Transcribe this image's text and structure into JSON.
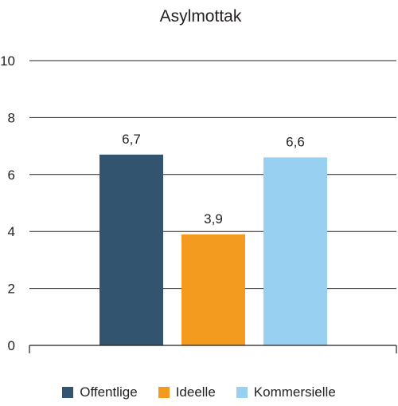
{
  "chart_data": {
    "type": "bar",
    "title": "Asylmottak",
    "categories": [
      "Offentlige",
      "Ideelle",
      "Kommersielle"
    ],
    "values": [
      6.7,
      3.9,
      6.6
    ],
    "data_labels": [
      "6,7",
      "3,9",
      "6,6"
    ],
    "colors": [
      "#33546e",
      "#f39b1e",
      "#97d0f0"
    ],
    "ylim": [
      0,
      10
    ],
    "yticks": [
      0,
      2,
      4,
      6,
      8,
      10
    ],
    "ytick_labels": [
      "0",
      "2",
      "4",
      "6",
      "8",
      "10"
    ],
    "grid": true,
    "legend": "bottom"
  },
  "legend": {
    "items": [
      {
        "label": "Offentlige",
        "color": "#33546e"
      },
      {
        "label": "Ideelle",
        "color": "#f39b1e"
      },
      {
        "label": "Kommersielle",
        "color": "#97d0f0"
      }
    ]
  }
}
